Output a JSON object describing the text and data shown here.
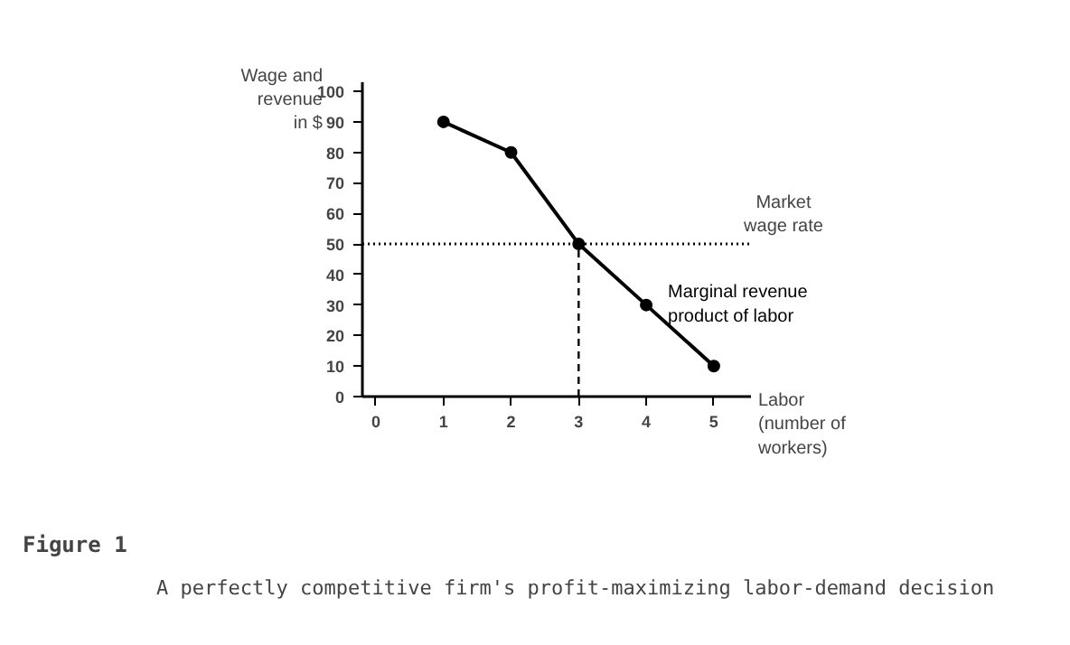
{
  "chart_data": {
    "type": "line",
    "title": "Figure 1",
    "subtitle": "A perfectly competitive firm's profit-maximizing labor-demand decision",
    "xlabel": "Labor (number of workers)",
    "ylabel": "Wage and revenue in $",
    "x": [
      1,
      2,
      3,
      4,
      5
    ],
    "series": [
      {
        "name": "Marginal revenue product of labor",
        "color": "#000000",
        "values": [
          90,
          80,
          50,
          30,
          10
        ]
      }
    ],
    "xlim": [
      -0.2,
      5.55
    ],
    "ylim": [
      0,
      103
    ],
    "xticks": [
      0,
      1,
      2,
      3,
      4,
      5
    ],
    "yticks": [
      0,
      10,
      20,
      30,
      40,
      50,
      60,
      70,
      80,
      90,
      100
    ],
    "ref_lines": [
      {
        "axis": "y",
        "value": 50,
        "label": "Market wage rate",
        "line_style": "dotted",
        "color": "#000000"
      },
      {
        "axis": "x",
        "value": 3,
        "label": null,
        "line_style": "dashed",
        "color": "#000000"
      }
    ],
    "marker": "circle",
    "line_style": "solid",
    "grid": false,
    "legend": false
  }
}
